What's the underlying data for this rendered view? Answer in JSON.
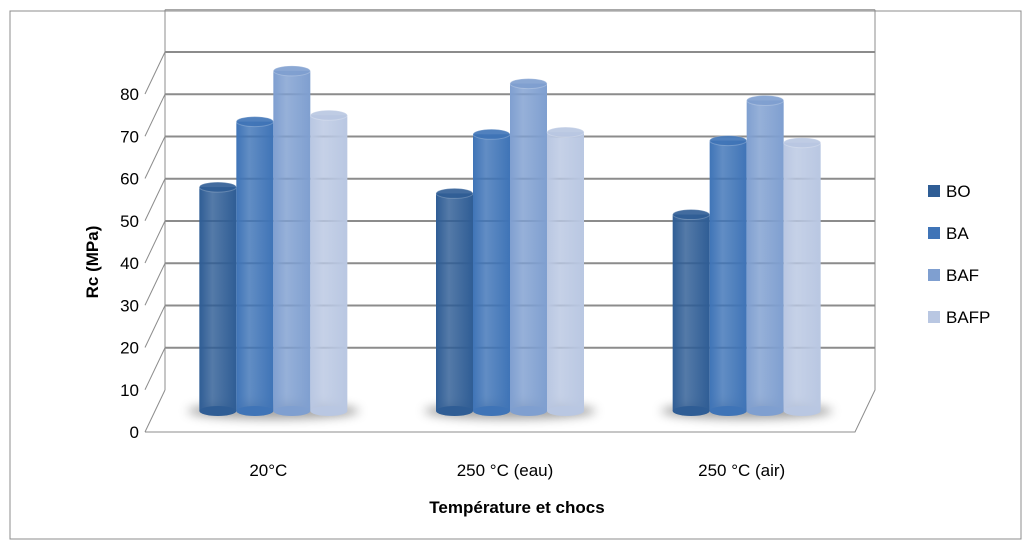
{
  "chart_data": {
    "type": "bar",
    "title": "",
    "xlabel": "Température et chocs",
    "ylabel": "Rc (MPa)",
    "categories": [
      "20°C",
      "250 °C (eau)",
      "250 °C (air)"
    ],
    "series": [
      {
        "name": "BO",
        "values": [
          53,
          51.5,
          46.5
        ],
        "color": "#2f5d95"
      },
      {
        "name": "BA",
        "values": [
          68.5,
          65.5,
          64
        ],
        "color": "#3f74b7"
      },
      {
        "name": "BAF",
        "values": [
          80.5,
          77.5,
          73.5
        ],
        "color": "#7f9fd0"
      },
      {
        "name": "BAFP",
        "values": [
          70,
          66,
          63.5
        ],
        "color": "#b9c7e2"
      }
    ],
    "ylim": [
      0,
      80
    ],
    "yticks": [
      0,
      10,
      20,
      30,
      40,
      50,
      60,
      70,
      80
    ],
    "grid": true,
    "legend_position": "right"
  }
}
